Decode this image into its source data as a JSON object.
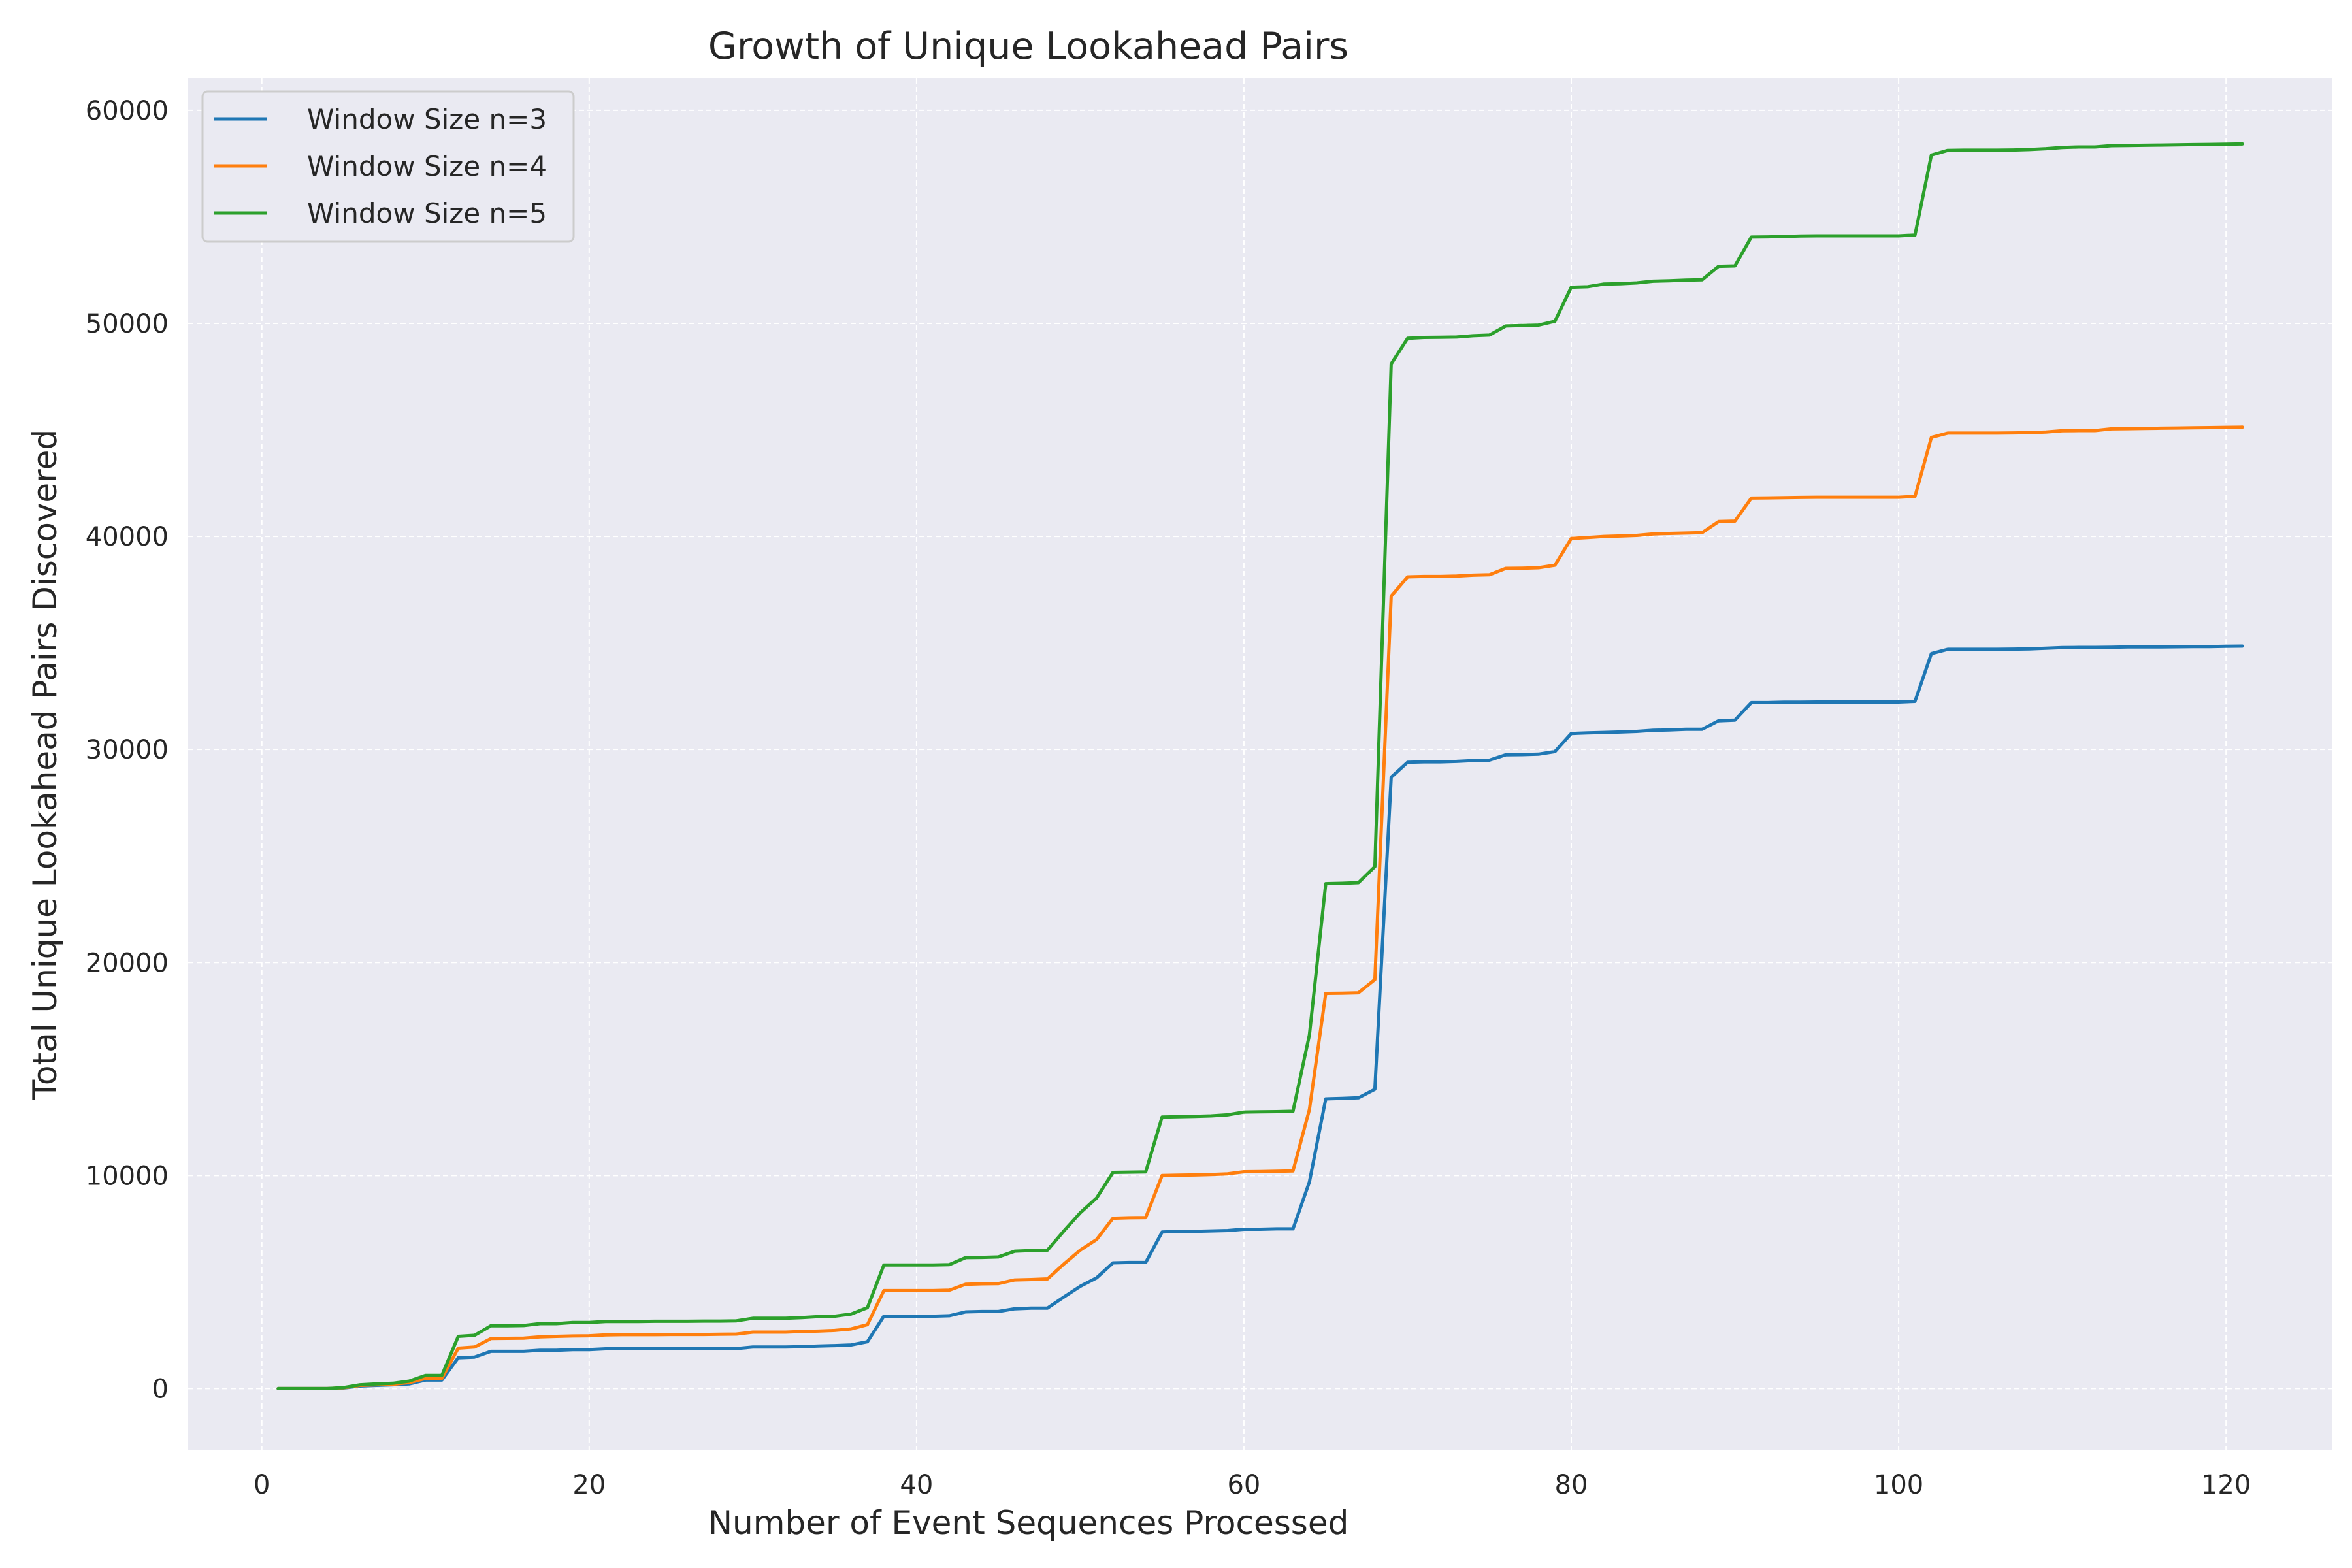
{
  "chart_data": {
    "type": "line",
    "title": "Growth of Unique Lookahead Pairs",
    "xlabel": "Number of Event Sequences Processed",
    "ylabel": "Total Unique Lookahead Pairs Discovered",
    "xlim": [
      -4.5,
      126.5
    ],
    "ylim": [
      -2900,
      61500
    ],
    "xticks": [
      0,
      20,
      40,
      60,
      80,
      100,
      120
    ],
    "yticks": [
      0,
      10000,
      20000,
      30000,
      40000,
      50000,
      60000
    ],
    "grid": true,
    "legend_position": "top-left",
    "colors": {
      "background": "#eaeaf2",
      "grid": "#ffffff"
    },
    "x": [
      1,
      2,
      3,
      4,
      5,
      6,
      7,
      8,
      9,
      10,
      11,
      12,
      13,
      14,
      15,
      16,
      17,
      18,
      19,
      20,
      21,
      22,
      23,
      24,
      25,
      26,
      27,
      28,
      29,
      30,
      31,
      32,
      33,
      34,
      35,
      36,
      37,
      38,
      39,
      40,
      41,
      42,
      43,
      44,
      45,
      46,
      47,
      48,
      49,
      50,
      51,
      52,
      53,
      54,
      55,
      56,
      57,
      58,
      59,
      60,
      61,
      62,
      63,
      64,
      65,
      66,
      67,
      68,
      69,
      70,
      71,
      72,
      73,
      74,
      75,
      76,
      77,
      78,
      79,
      80,
      81,
      82,
      83,
      84,
      85,
      86,
      87,
      88,
      89,
      90,
      91,
      92,
      93,
      94,
      95,
      96,
      97,
      98,
      99,
      100,
      101,
      102,
      103,
      104,
      105,
      106,
      107,
      108,
      109,
      110,
      111,
      112,
      113,
      114,
      115,
      116,
      117,
      118,
      119,
      120,
      121
    ],
    "series": [
      {
        "name": "Window Size n=3",
        "color": "#1f77b4",
        "values": [
          0,
          0,
          0,
          0,
          30,
          120,
          150,
          180,
          220,
          400,
          400,
          1450,
          1480,
          1750,
          1750,
          1750,
          1800,
          1800,
          1830,
          1830,
          1870,
          1870,
          1870,
          1870,
          1870,
          1870,
          1870,
          1870,
          1880,
          1950,
          1950,
          1950,
          1970,
          2000,
          2020,
          2050,
          2200,
          3400,
          3400,
          3400,
          3400,
          3420,
          3600,
          3620,
          3620,
          3750,
          3780,
          3780,
          4300,
          4800,
          5200,
          5900,
          5920,
          5920,
          7350,
          7380,
          7380,
          7400,
          7420,
          7480,
          7480,
          7500,
          7500,
          9700,
          13600,
          13620,
          13650,
          14050,
          28700,
          29400,
          29420,
          29420,
          29440,
          29480,
          29500,
          29750,
          29760,
          29780,
          29900,
          30750,
          30780,
          30800,
          30820,
          30850,
          30900,
          30920,
          30950,
          30950,
          31350,
          31380,
          32200,
          32200,
          32220,
          32220,
          32230,
          32230,
          32230,
          32230,
          32230,
          32230,
          32260,
          34500,
          34700,
          34700,
          34700,
          34700,
          34710,
          34720,
          34750,
          34780,
          34790,
          34790,
          34800,
          34810,
          34810,
          34810,
          34820,
          34830,
          34830,
          34840,
          34850
        ]
      },
      {
        "name": "Window Size n=4",
        "color": "#ff7f0e",
        "values": [
          0,
          0,
          0,
          0,
          40,
          150,
          180,
          200,
          280,
          480,
          480,
          1900,
          1950,
          2350,
          2360,
          2370,
          2430,
          2450,
          2470,
          2480,
          2520,
          2530,
          2530,
          2530,
          2540,
          2540,
          2540,
          2550,
          2560,
          2650,
          2650,
          2650,
          2680,
          2700,
          2730,
          2800,
          3000,
          4600,
          4600,
          4600,
          4600,
          4620,
          4900,
          4920,
          4930,
          5100,
          5120,
          5150,
          5850,
          6500,
          7000,
          8000,
          8020,
          8030,
          10000,
          10020,
          10030,
          10050,
          10080,
          10180,
          10190,
          10200,
          10220,
          13100,
          18550,
          18560,
          18580,
          19200,
          37200,
          38100,
          38120,
          38120,
          38140,
          38180,
          38200,
          38500,
          38510,
          38530,
          38650,
          39900,
          39950,
          40000,
          40020,
          40050,
          40120,
          40140,
          40160,
          40180,
          40700,
          40720,
          41800,
          41810,
          41820,
          41830,
          41840,
          41840,
          41840,
          41840,
          41840,
          41840,
          41880,
          44650,
          44850,
          44850,
          44850,
          44850,
          44860,
          44870,
          44900,
          44960,
          44970,
          44970,
          45050,
          45060,
          45070,
          45080,
          45090,
          45100,
          45110,
          45120,
          45130
        ]
      },
      {
        "name": "Window Size n=5",
        "color": "#2ca02c",
        "values": [
          0,
          0,
          0,
          0,
          50,
          180,
          220,
          250,
          350,
          620,
          620,
          2450,
          2500,
          2950,
          2950,
          2960,
          3050,
          3050,
          3100,
          3100,
          3150,
          3150,
          3150,
          3160,
          3160,
          3160,
          3170,
          3170,
          3180,
          3300,
          3300,
          3300,
          3330,
          3380,
          3400,
          3500,
          3800,
          5800,
          5800,
          5800,
          5800,
          5820,
          6150,
          6160,
          6180,
          6450,
          6480,
          6500,
          7400,
          8250,
          8950,
          10150,
          10160,
          10170,
          12750,
          12760,
          12780,
          12800,
          12850,
          12980,
          12990,
          13000,
          13020,
          16600,
          23700,
          23720,
          23750,
          24500,
          48100,
          49300,
          49340,
          49350,
          49360,
          49420,
          49450,
          49880,
          49900,
          49920,
          50100,
          51700,
          51720,
          51850,
          51860,
          51900,
          51980,
          52000,
          52030,
          52050,
          52680,
          52700,
          54050,
          54060,
          54080,
          54100,
          54110,
          54110,
          54110,
          54110,
          54110,
          54110,
          54150,
          57900,
          58120,
          58130,
          58130,
          58130,
          58140,
          58160,
          58200,
          58260,
          58280,
          58280,
          58340,
          58350,
          58360,
          58370,
          58380,
          58390,
          58400,
          58410,
          58420
        ]
      }
    ]
  }
}
